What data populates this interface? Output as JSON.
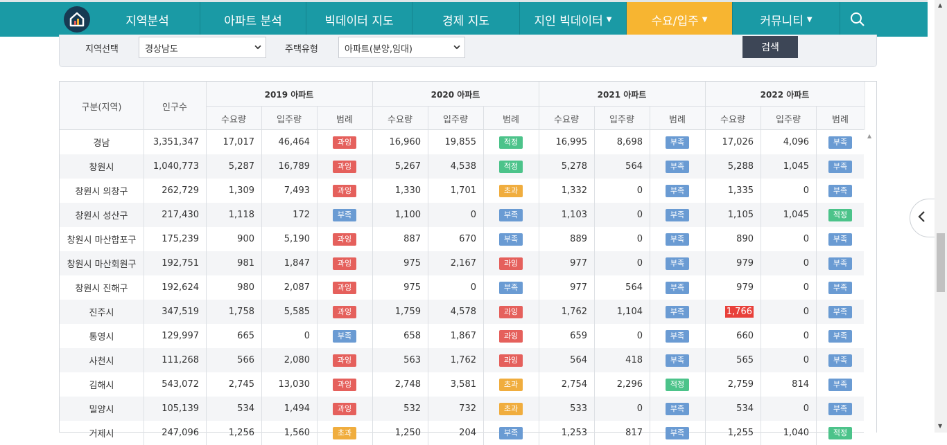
{
  "nav": {
    "items": [
      {
        "label": "지역분석",
        "width": 152,
        "caret": false,
        "active": false
      },
      {
        "label": "아파트 분석",
        "width": 153,
        "caret": false,
        "active": false
      },
      {
        "label": "빅데이터 지도",
        "width": 153,
        "caret": false,
        "active": false
      },
      {
        "label": "경제 지도",
        "width": 155,
        "caret": false,
        "active": false
      },
      {
        "label": "지인 빅데이터",
        "width": 154,
        "caret": true,
        "active": false
      },
      {
        "label": "수요/입주",
        "width": 153,
        "caret": true,
        "active": true
      },
      {
        "label": "커뮤니티",
        "width": 155,
        "caret": true,
        "active": false
      }
    ]
  },
  "filter": {
    "region_label": "지역선택",
    "region_value": "경상남도",
    "type_label": "주택유형",
    "type_value": "아파트(분양,임대)",
    "search_label": "검색"
  },
  "table": {
    "col_region": "구분(지역)",
    "col_population": "인구수",
    "years": [
      "2019 아파트",
      "2020 아파트",
      "2021 아파트",
      "2022 아파트"
    ],
    "sub_headers": [
      "수요량",
      "입주량",
      "범례"
    ],
    "rows": [
      {
        "region": "경남",
        "pop": "3,351,347",
        "y": [
          [
            "17,017",
            "46,464",
            "과잉"
          ],
          [
            "16,960",
            "19,855",
            "적정"
          ],
          [
            "16,995",
            "8,698",
            "부족"
          ],
          [
            "17,026",
            "4,096",
            "부족"
          ]
        ]
      },
      {
        "region": "창원시",
        "pop": "1,040,773",
        "y": [
          [
            "5,287",
            "16,789",
            "과잉"
          ],
          [
            "5,267",
            "4,538",
            "적정"
          ],
          [
            "5,278",
            "564",
            "부족"
          ],
          [
            "5,288",
            "1,045",
            "부족"
          ]
        ]
      },
      {
        "region": "창원시 의창구",
        "pop": "262,729",
        "y": [
          [
            "1,309",
            "7,493",
            "과잉"
          ],
          [
            "1,330",
            "1,701",
            "초과"
          ],
          [
            "1,332",
            "0",
            "부족"
          ],
          [
            "1,335",
            "0",
            "부족"
          ]
        ]
      },
      {
        "region": "창원시 성산구",
        "pop": "217,430",
        "y": [
          [
            "1,118",
            "172",
            "부족"
          ],
          [
            "1,100",
            "0",
            "부족"
          ],
          [
            "1,103",
            "0",
            "부족"
          ],
          [
            "1,105",
            "1,045",
            "적정"
          ]
        ]
      },
      {
        "region": "창원시 마산합포구",
        "pop": "175,239",
        "y": [
          [
            "900",
            "5,190",
            "과잉"
          ],
          [
            "887",
            "670",
            "부족"
          ],
          [
            "889",
            "0",
            "부족"
          ],
          [
            "890",
            "0",
            "부족"
          ]
        ]
      },
      {
        "region": "창원시 마산회원구",
        "pop": "192,751",
        "y": [
          [
            "981",
            "1,847",
            "과잉"
          ],
          [
            "975",
            "2,167",
            "과잉"
          ],
          [
            "977",
            "0",
            "부족"
          ],
          [
            "979",
            "0",
            "부족"
          ]
        ]
      },
      {
        "region": "창원시 진해구",
        "pop": "192,624",
        "y": [
          [
            "980",
            "2,087",
            "과잉"
          ],
          [
            "975",
            "0",
            "부족"
          ],
          [
            "977",
            "564",
            "부족"
          ],
          [
            "979",
            "0",
            "부족"
          ]
        ]
      },
      {
        "region": "진주시",
        "pop": "347,519",
        "y": [
          [
            "1,758",
            "5,585",
            "과잉"
          ],
          [
            "1,759",
            "4,578",
            "과잉"
          ],
          [
            "1,762",
            "1,104",
            "부족"
          ],
          [
            "1,766",
            "0",
            "부족"
          ]
        ],
        "highlight": true
      },
      {
        "region": "통영시",
        "pop": "129,997",
        "y": [
          [
            "665",
            "0",
            "부족"
          ],
          [
            "658",
            "1,867",
            "과잉"
          ],
          [
            "659",
            "0",
            "부족"
          ],
          [
            "660",
            "0",
            "부족"
          ]
        ]
      },
      {
        "region": "사천시",
        "pop": "111,268",
        "y": [
          [
            "566",
            "2,080",
            "과잉"
          ],
          [
            "563",
            "1,762",
            "과잉"
          ],
          [
            "564",
            "418",
            "부족"
          ],
          [
            "565",
            "0",
            "부족"
          ]
        ]
      },
      {
        "region": "김해시",
        "pop": "543,072",
        "y": [
          [
            "2,745",
            "13,030",
            "과잉"
          ],
          [
            "2,748",
            "3,581",
            "초과"
          ],
          [
            "2,754",
            "2,296",
            "적정"
          ],
          [
            "2,759",
            "814",
            "부족"
          ]
        ]
      },
      {
        "region": "밀양시",
        "pop": "105,139",
        "y": [
          [
            "534",
            "1,494",
            "과잉"
          ],
          [
            "532",
            "732",
            "초과"
          ],
          [
            "533",
            "0",
            "부족"
          ],
          [
            "534",
            "0",
            "부족"
          ]
        ]
      },
      {
        "region": "거제시",
        "pop": "247,096",
        "y": [
          [
            "1,256",
            "1,560",
            "초과"
          ],
          [
            "1,250",
            "204",
            "부족"
          ],
          [
            "1,253",
            "817",
            "부족"
          ],
          [
            "1,255",
            "1,040",
            "적정"
          ]
        ]
      }
    ]
  },
  "badge_colors": {
    "과잉": "#e5605c",
    "적정": "#4cc38a",
    "부족": "#6a9bd3",
    "초과": "#f0ad3e"
  }
}
